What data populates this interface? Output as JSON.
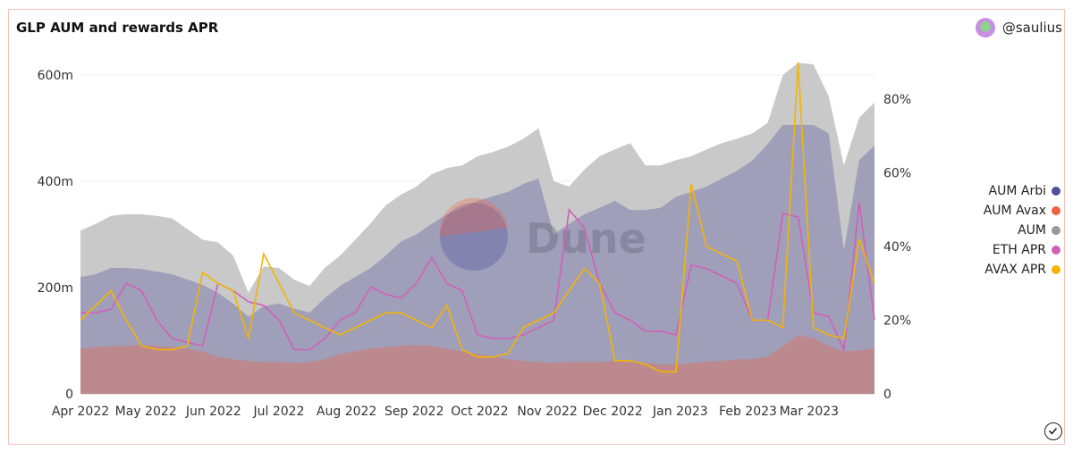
{
  "title": "GLP AUM and rewards APR",
  "author": "@saulius",
  "watermark": "Dune",
  "colors": {
    "aum_arbi": "#4f4f9f",
    "aum_avax": "#f4603e",
    "aum": "#999999",
    "eth_apr": "#d160b8",
    "avax_apr": "#f4b400"
  },
  "chart_data": {
    "type": "area+line",
    "title": "GLP AUM and rewards APR",
    "x_ticks": [
      "Apr 2022",
      "May 2022",
      "Jun 2022",
      "Jul 2022",
      "Aug 2022",
      "Sep 2022",
      "Oct 2022",
      "Nov 2022",
      "Dec 2022",
      "Jan 2023",
      "Feb 2023",
      "Mar 2023"
    ],
    "y_left_ticks": [
      "0",
      "200m",
      "400m",
      "600m"
    ],
    "y_right_ticks": [
      "0",
      "20%",
      "40%",
      "60%",
      "80%"
    ],
    "y_left_range": [
      0,
      600
    ],
    "y_right_range": [
      0,
      80
    ],
    "grid": true,
    "legend_position": "right",
    "x": [
      "2022-04-01",
      "2022-04-08",
      "2022-04-15",
      "2022-04-22",
      "2022-04-29",
      "2022-05-06",
      "2022-05-13",
      "2022-05-20",
      "2022-05-27",
      "2022-06-03",
      "2022-06-10",
      "2022-06-17",
      "2022-06-24",
      "2022-07-01",
      "2022-07-08",
      "2022-07-15",
      "2022-07-22",
      "2022-07-29",
      "2022-08-05",
      "2022-08-12",
      "2022-08-19",
      "2022-08-26",
      "2022-09-02",
      "2022-09-09",
      "2022-09-16",
      "2022-09-23",
      "2022-09-30",
      "2022-10-07",
      "2022-10-14",
      "2022-10-21",
      "2022-10-28",
      "2022-11-04",
      "2022-11-11",
      "2022-11-18",
      "2022-11-25",
      "2022-12-02",
      "2022-12-09",
      "2022-12-16",
      "2022-12-23",
      "2022-12-30",
      "2023-01-06",
      "2023-01-13",
      "2023-01-20",
      "2023-01-27",
      "2023-02-03",
      "2023-02-10",
      "2023-02-17",
      "2023-02-24",
      "2023-03-03",
      "2023-03-10",
      "2023-03-17",
      "2023-03-24",
      "2023-03-31"
    ],
    "series": [
      {
        "name": "AUM Arbi",
        "axis": "left",
        "kind": "area",
        "values": [
          220,
          225,
          237,
          237,
          235,
          230,
          225,
          215,
          205,
          190,
          170,
          145,
          165,
          170,
          160,
          153,
          180,
          203,
          220,
          237,
          260,
          287,
          300,
          320,
          338,
          350,
          363,
          372,
          380,
          395,
          405,
          300,
          320,
          338,
          350,
          363,
          346,
          346,
          350,
          371,
          380,
          390,
          405,
          420,
          439,
          470,
          506,
          506,
          506,
          490,
          270,
          440,
          467
        ]
      },
      {
        "name": "AUM Avax",
        "axis": "left",
        "kind": "area",
        "values": [
          85,
          88,
          90,
          90,
          92,
          90,
          88,
          85,
          80,
          70,
          65,
          62,
          60,
          60,
          58,
          60,
          65,
          75,
          80,
          85,
          88,
          90,
          92,
          90,
          85,
          80,
          75,
          70,
          65,
          62,
          60,
          58,
          60,
          60,
          60,
          62,
          60,
          58,
          55,
          55,
          58,
          60,
          62,
          65,
          65,
          70,
          90,
          110,
          105,
          90,
          80,
          82,
          85
        ]
      },
      {
        "name": "AUM",
        "axis": "left",
        "kind": "area",
        "values": [
          307,
          320,
          335,
          338,
          338,
          335,
          330,
          310,
          290,
          285,
          260,
          190,
          240,
          237,
          215,
          203,
          237,
          260,
          290,
          321,
          355,
          375,
          390,
          413,
          425,
          430,
          447,
          455,
          465,
          480,
          500,
          400,
          390,
          422,
          447,
          460,
          472,
          430,
          430,
          440,
          447,
          460,
          472,
          480,
          490,
          510,
          600,
          623,
          620,
          560,
          430,
          520,
          548
        ]
      },
      {
        "name": "ETH APR",
        "axis": "right",
        "kind": "line",
        "values": [
          22,
          22,
          23,
          30,
          28,
          20,
          15,
          14,
          13,
          30,
          28,
          25,
          24,
          20,
          12,
          12,
          15,
          20,
          22,
          29,
          27,
          26,
          30,
          37,
          30,
          28,
          16,
          15,
          15,
          16,
          18,
          20,
          50,
          45,
          30,
          22,
          20,
          17,
          17,
          16,
          35,
          34,
          32,
          30,
          20,
          20,
          49,
          48,
          22,
          21,
          12,
          52,
          20
        ]
      },
      {
        "name": "AVAX APR",
        "axis": "right",
        "kind": "line",
        "values": [
          20,
          24,
          28,
          20,
          13,
          12,
          12,
          13,
          33,
          30,
          28,
          15,
          38,
          30,
          22,
          20,
          18,
          16,
          18,
          20,
          22,
          22,
          20,
          18,
          24,
          12,
          10,
          10,
          11,
          18,
          20,
          22,
          28,
          34,
          30,
          9,
          9,
          8,
          6,
          6,
          57,
          40,
          38,
          36,
          20,
          20,
          18,
          90,
          18,
          16,
          15,
          42,
          30
        ]
      }
    ]
  }
}
